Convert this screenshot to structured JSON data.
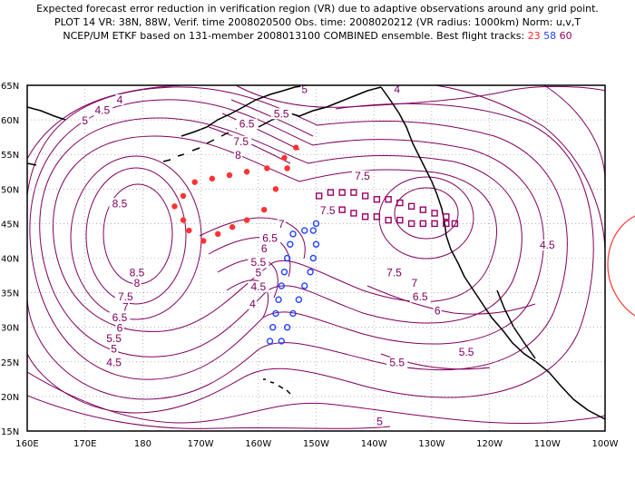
{
  "header": {
    "line1": "Expected forecast error reduction in verification region (VR) due to adaptive observations around any grid point.",
    "line2": "PLOT 14 VR: 38N, 88W, Verif. time 2008020500 Obs. time: 2008020212 (VR radius: 1000km) Norm: u,v,T",
    "line3_prefix": "NCEP/UM ETKF based on 131-member 2008013100 COMBINED ensemble.  Best flight tracks:",
    "track_red": "23",
    "track_blue": "58",
    "track_purple": "60"
  },
  "map": {
    "lat_labels": [
      "15N",
      "20N",
      "25N",
      "30N",
      "35N",
      "40N",
      "45N",
      "50N",
      "55N",
      "60N",
      "65N"
    ],
    "lon_labels": [
      "160E",
      "170E",
      "180",
      "170W",
      "160W",
      "150W",
      "140W",
      "130W",
      "120W",
      "110W",
      "100W"
    ],
    "contour_color": "#800060",
    "contour_labels": [
      {
        "text": "5",
        "lon": -152,
        "lat": 64
      },
      {
        "text": "4",
        "lon": -136,
        "lat": 64
      },
      {
        "text": "4",
        "lon": 176,
        "lat": 62.5
      },
      {
        "text": "4.5",
        "lon": 173,
        "lat": 61
      },
      {
        "text": "5",
        "lon": 170,
        "lat": 59.5
      },
      {
        "text": "5.5",
        "lon": -156,
        "lat": 60.5
      },
      {
        "text": "6.5",
        "lon": -162,
        "lat": 59
      },
      {
        "text": "7.5",
        "lon": -163,
        "lat": 56.5
      },
      {
        "text": "8",
        "lon": -163.5,
        "lat": 54.5
      },
      {
        "text": "7.5",
        "lon": -142,
        "lat": 51.5
      },
      {
        "text": "8.5",
        "lon": 176,
        "lat": 47.5
      },
      {
        "text": "7.5",
        "lon": -148,
        "lat": 46.5
      },
      {
        "text": "7",
        "lon": -156,
        "lat": 44.5
      },
      {
        "text": "6.5",
        "lon": -158,
        "lat": 42.5
      },
      {
        "text": "6",
        "lon": -159,
        "lat": 41
      },
      {
        "text": "5.5",
        "lon": -160,
        "lat": 39
      },
      {
        "text": "5",
        "lon": -160,
        "lat": 37.5
      },
      {
        "text": "4.5",
        "lon": -160,
        "lat": 35.5
      },
      {
        "text": "4",
        "lon": -161,
        "lat": 33
      },
      {
        "text": "8.5",
        "lon": 179,
        "lat": 37.5
      },
      {
        "text": "8",
        "lon": 179,
        "lat": 36
      },
      {
        "text": "7.5",
        "lon": 177,
        "lat": 34
      },
      {
        "text": "7",
        "lon": 177,
        "lat": 32.5
      },
      {
        "text": "6.5",
        "lon": 176,
        "lat": 31
      },
      {
        "text": "6",
        "lon": 176,
        "lat": 29.5
      },
      {
        "text": "5.5",
        "lon": 175,
        "lat": 28
      },
      {
        "text": "5",
        "lon": 175,
        "lat": 26.5
      },
      {
        "text": "4.5",
        "lon": 175,
        "lat": 24.5
      },
      {
        "text": "7.5",
        "lon": -136.5,
        "lat": 37.5
      },
      {
        "text": "7",
        "lon": -133,
        "lat": 36
      },
      {
        "text": "6.5",
        "lon": -132,
        "lat": 34
      },
      {
        "text": "6",
        "lon": -129,
        "lat": 32
      },
      {
        "text": "5.5",
        "lon": -124,
        "lat": 26
      },
      {
        "text": "5.5",
        "lon": -136,
        "lat": 24.5
      },
      {
        "text": "4.5",
        "lon": -110,
        "lat": 41.5
      },
      {
        "text": "5",
        "lon": -139,
        "lat": 16
      }
    ],
    "flight_tracks": {
      "red": {
        "color": "#ff3333",
        "points": [
          [
            -153.5,
            56
          ],
          [
            -155,
            53
          ],
          [
            -157,
            50
          ],
          [
            -159,
            47
          ],
          [
            -162,
            45.5
          ],
          [
            -164.5,
            44.5
          ],
          [
            -167,
            43.5
          ],
          [
            -169.5,
            42.5
          ],
          [
            -172,
            44
          ],
          [
            -173,
            45.5
          ],
          [
            -174.5,
            47.5
          ],
          [
            -173,
            49
          ],
          [
            -171,
            51
          ],
          [
            -168,
            51.5
          ],
          [
            -165,
            52
          ],
          [
            -162,
            52.5
          ],
          [
            -158.5,
            53
          ],
          [
            -155.5,
            54.5
          ]
        ]
      },
      "blue": {
        "color": "#2244ff",
        "points": [
          [
            -150.5,
            44
          ],
          [
            -152,
            44
          ],
          [
            -154,
            43.5
          ],
          [
            -154.5,
            42
          ],
          [
            -155,
            40
          ],
          [
            -155.5,
            38
          ],
          [
            -156,
            36
          ],
          [
            -156.5,
            34
          ],
          [
            -157,
            32
          ],
          [
            -157.5,
            30
          ],
          [
            -158,
            28
          ],
          [
            -156,
            28
          ],
          [
            -155,
            30
          ],
          [
            -154,
            32
          ],
          [
            -153,
            34
          ],
          [
            -152,
            36
          ],
          [
            -151,
            38
          ],
          [
            -150.5,
            40
          ],
          [
            -150,
            42
          ],
          [
            -150,
            45
          ]
        ]
      },
      "purple": {
        "color": "#990066",
        "points": [
          [
            -149.5,
            49
          ],
          [
            -147.5,
            49.5
          ],
          [
            -145.5,
            49.5
          ],
          [
            -143.5,
            49.5
          ],
          [
            -141.5,
            49
          ],
          [
            -139.5,
            48.5
          ],
          [
            -137.5,
            48.5
          ],
          [
            -135.5,
            48
          ],
          [
            -133.5,
            47.5
          ],
          [
            -131.5,
            47
          ],
          [
            -129.5,
            46.5
          ],
          [
            -127.5,
            46
          ],
          [
            -147.5,
            47
          ],
          [
            -145.5,
            47
          ],
          [
            -143.5,
            46.5
          ],
          [
            -141.5,
            46
          ],
          [
            -139.5,
            46
          ],
          [
            -137.5,
            45.5
          ],
          [
            -135.5,
            45.5
          ],
          [
            -133.5,
            45
          ],
          [
            -131.5,
            45
          ],
          [
            -129.5,
            45
          ],
          [
            -127.5,
            45
          ],
          [
            -126,
            45
          ]
        ]
      }
    }
  }
}
